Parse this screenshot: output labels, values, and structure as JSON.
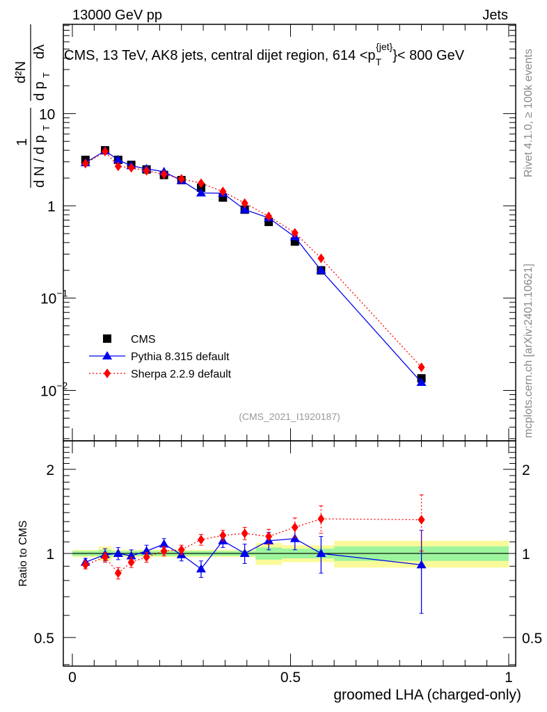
{
  "header": {
    "left": "13000 GeV pp",
    "right": "Jets"
  },
  "side": {
    "rivet": "Rivet 4.1.0, ≥ 100k events",
    "mcplots": "mcplots.cern.ch [arXiv:2401.10621]"
  },
  "chart_data": [
    {
      "type": "scatter",
      "title": "CMS, 13 TeV, AK8 jets, central dijet region, 614 <p_T^{jet}< 800 GeV",
      "title_parts": {
        "pre": "CMS, 13 TeV, AK8 jets, central dijet region, 614 <p",
        "sub": "T",
        "sup": "{jet}",
        "post": "}< 800 GeV"
      },
      "ylabel": "1/(dN/dp_T) d²N/(dp_T dλ)",
      "ylabel_parts": {
        "num1": "1",
        "den1": "d N / d p",
        "num2": "d²N",
        "den2": "d p",
        "den2b": "dλ",
        "sub": "T",
        "hash": "#"
      },
      "yscale": "log",
      "ylim": [
        0.00284,
        92.7
      ],
      "yticks": [
        {
          "v": 10,
          "label": "10"
        },
        {
          "v": 1,
          "label": "1"
        },
        {
          "v": 0.1,
          "label": "10",
          "exp": "−1"
        },
        {
          "v": 0.01,
          "label": "10",
          "exp": "−2"
        }
      ],
      "xlim": [
        -0.0207,
        1.016
      ],
      "annotation": "(CMS_2021_I1920187)",
      "legend_position": "bottom-left",
      "x": [
        0.03,
        0.075,
        0.105,
        0.135,
        0.17,
        0.21,
        0.25,
        0.295,
        0.345,
        0.395,
        0.45,
        0.51,
        0.57,
        0.8
      ],
      "bin_edges": [
        0,
        0.06,
        0.09,
        0.12,
        0.15,
        0.19,
        0.23,
        0.27,
        0.32,
        0.37,
        0.42,
        0.48,
        0.54,
        0.6,
        1.0
      ],
      "series": [
        {
          "name": "CMS",
          "color": "#000000",
          "marker": "square",
          "values": [
            3.15,
            4.0,
            3.15,
            2.78,
            2.48,
            2.16,
            1.9,
            1.57,
            1.23,
            0.91,
            0.67,
            0.41,
            0.2,
            0.0135
          ]
        },
        {
          "name": "Pythia 8.315 default",
          "color": "#0000ee",
          "marker": "triangle",
          "line": "solid",
          "values": [
            2.93,
            3.95,
            3.15,
            2.72,
            2.52,
            2.34,
            1.88,
            1.38,
            1.37,
            0.91,
            0.74,
            0.46,
            0.2,
            0.0122
          ],
          "ratio": [
            0.93,
            0.99,
            1.0,
            0.98,
            1.02,
            1.08,
            0.99,
            0.88,
            1.11,
            1.0,
            1.11,
            1.13,
            1.0,
            0.91
          ],
          "ratio_err": [
            0.03,
            0.05,
            0.05,
            0.05,
            0.05,
            0.05,
            0.05,
            0.06,
            0.06,
            0.08,
            0.08,
            0.1,
            0.15,
            0.3
          ]
        },
        {
          "name": "Sherpa 2.2.9 default",
          "color": "#ff0000",
          "marker": "diamond",
          "line": "dotted",
          "values": [
            2.87,
            3.88,
            2.68,
            2.59,
            2.4,
            2.2,
            1.96,
            1.76,
            1.43,
            1.07,
            0.77,
            0.51,
            0.27,
            0.0178
          ],
          "ratio": [
            0.91,
            0.97,
            0.85,
            0.93,
            0.97,
            1.02,
            1.03,
            1.12,
            1.16,
            1.18,
            1.15,
            1.24,
            1.33,
            1.32
          ],
          "ratio_err": [
            0.03,
            0.04,
            0.04,
            0.04,
            0.04,
            0.04,
            0.04,
            0.05,
            0.05,
            0.06,
            0.07,
            0.1,
            0.15,
            0.3
          ]
        }
      ]
    },
    {
      "type": "scatter",
      "ylabel": "Ratio to CMS",
      "yscale": "log2",
      "ylim": [
        0.395,
        2.53
      ],
      "yticks": [
        {
          "v": 2,
          "label": "2"
        },
        {
          "v": 1,
          "label": "1"
        },
        {
          "v": 0.5,
          "label": "0.5"
        }
      ],
      "xlabel": "groomed LHA (charged-only)",
      "xticks": [
        {
          "v": 0,
          "label": "0"
        },
        {
          "v": 0.5,
          "label": "0.5"
        },
        {
          "v": 1,
          "label": "1"
        }
      ],
      "bands": {
        "green": [
          0.02,
          0.03,
          0.02,
          0.02,
          0.02,
          0.02,
          0.02,
          0.02,
          0.02,
          0.02,
          0.05,
          0.04,
          0.04,
          0.06
        ],
        "yellow": [
          0.03,
          0.06,
          0.03,
          0.03,
          0.03,
          0.03,
          0.03,
          0.03,
          0.03,
          0.03,
          0.09,
          0.07,
          0.07,
          0.11
        ],
        "green_color": "#9cf59c",
        "yellow_color": "#fafa9a"
      }
    }
  ]
}
